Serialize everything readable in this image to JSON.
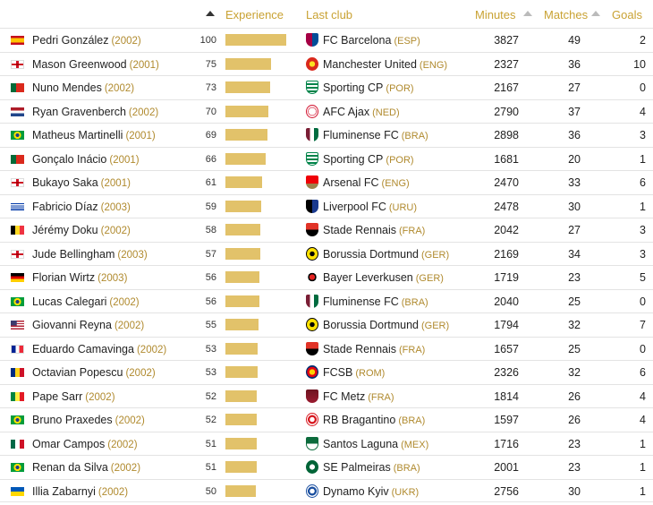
{
  "header": {
    "experience": "Experience",
    "last_club": "Last club",
    "minutes": "Minutes",
    "matches": "Matches",
    "goals": "Goals"
  },
  "accent_color": "#c9a233",
  "bar_color": "#e2c26a",
  "rows": [
    {
      "name": "Pedri González",
      "year": "(2002)",
      "flag": "spain-flag-icon",
      "experience": "100",
      "club": "FC Barcelona",
      "country": "(ESP)",
      "crest": "barcelona-crest-icon",
      "minutes": "3827",
      "matches": "49",
      "goals": "2"
    },
    {
      "name": "Mason Greenwood",
      "year": "(2001)",
      "flag": "england-flag-icon",
      "experience": "75",
      "club": "Manchester United",
      "country": "(ENG)",
      "crest": "manchester-united-crest-icon",
      "minutes": "2327",
      "matches": "36",
      "goals": "10"
    },
    {
      "name": "Nuno Mendes",
      "year": "(2002)",
      "flag": "portugal-flag-icon",
      "experience": "73",
      "club": "Sporting CP",
      "country": "(POR)",
      "crest": "sporting-cp-crest-icon",
      "minutes": "2167",
      "matches": "27",
      "goals": "0"
    },
    {
      "name": "Ryan Gravenberch",
      "year": "(2002)",
      "flag": "netherlands-flag-icon",
      "experience": "70",
      "club": "AFC Ajax",
      "country": "(NED)",
      "crest": "ajax-crest-icon",
      "minutes": "2790",
      "matches": "37",
      "goals": "4"
    },
    {
      "name": "Matheus Martinelli",
      "year": "(2001)",
      "flag": "brazil-flag-icon",
      "experience": "69",
      "club": "Fluminense FC",
      "country": "(BRA)",
      "crest": "fluminense-crest-icon",
      "minutes": "2898",
      "matches": "36",
      "goals": "3"
    },
    {
      "name": "Gonçalo Inácio",
      "year": "(2001)",
      "flag": "portugal-flag-icon",
      "experience": "66",
      "club": "Sporting CP",
      "country": "(POR)",
      "crest": "sporting-cp-crest-icon",
      "minutes": "1681",
      "matches": "20",
      "goals": "1"
    },
    {
      "name": "Bukayo Saka",
      "year": "(2001)",
      "flag": "england-flag-icon",
      "experience": "61",
      "club": "Arsenal FC",
      "country": "(ENG)",
      "crest": "arsenal-crest-icon",
      "minutes": "2470",
      "matches": "33",
      "goals": "6"
    },
    {
      "name": "Fabricio Díaz",
      "year": "(2003)",
      "flag": "uruguay-flag-icon",
      "experience": "59",
      "club": "Liverpool FC",
      "country": "(URU)",
      "crest": "liverpool-uru-crest-icon",
      "minutes": "2478",
      "matches": "30",
      "goals": "1"
    },
    {
      "name": "Jérémy Doku",
      "year": "(2002)",
      "flag": "belgium-flag-icon",
      "experience": "58",
      "club": "Stade Rennais",
      "country": "(FRA)",
      "crest": "rennes-crest-icon",
      "minutes": "2042",
      "matches": "27",
      "goals": "3"
    },
    {
      "name": "Jude Bellingham",
      "year": "(2003)",
      "flag": "england-flag-icon",
      "experience": "57",
      "club": "Borussia Dortmund",
      "country": "(GER)",
      "crest": "dortmund-crest-icon",
      "minutes": "2169",
      "matches": "34",
      "goals": "3"
    },
    {
      "name": "Florian Wirtz",
      "year": "(2003)",
      "flag": "germany-flag-icon",
      "experience": "56",
      "club": "Bayer Leverkusen",
      "country": "(GER)",
      "crest": "leverkusen-crest-icon",
      "minutes": "1719",
      "matches": "23",
      "goals": "5"
    },
    {
      "name": "Lucas Calegari",
      "year": "(2002)",
      "flag": "brazil-flag-icon",
      "experience": "56",
      "club": "Fluminense FC",
      "country": "(BRA)",
      "crest": "fluminense-crest-icon",
      "minutes": "2040",
      "matches": "25",
      "goals": "0"
    },
    {
      "name": "Giovanni Reyna",
      "year": "(2002)",
      "flag": "usa-flag-icon",
      "experience": "55",
      "club": "Borussia Dortmund",
      "country": "(GER)",
      "crest": "dortmund-crest-icon",
      "minutes": "1794",
      "matches": "32",
      "goals": "7"
    },
    {
      "name": "Eduardo Camavinga",
      "year": "(2002)",
      "flag": "france-flag-icon",
      "experience": "53",
      "club": "Stade Rennais",
      "country": "(FRA)",
      "crest": "rennes-crest-icon",
      "minutes": "1657",
      "matches": "25",
      "goals": "0"
    },
    {
      "name": "Octavian Popescu",
      "year": "(2002)",
      "flag": "romania-flag-icon",
      "experience": "53",
      "club": "FCSB",
      "country": "(ROM)",
      "crest": "fcsb-crest-icon",
      "minutes": "2326",
      "matches": "32",
      "goals": "6"
    },
    {
      "name": "Pape Sarr",
      "year": "(2002)",
      "flag": "senegal-flag-icon",
      "experience": "52",
      "club": "FC Metz",
      "country": "(FRA)",
      "crest": "metz-crest-icon",
      "minutes": "1814",
      "matches": "26",
      "goals": "4"
    },
    {
      "name": "Bruno Praxedes",
      "year": "(2002)",
      "flag": "brazil-flag-icon",
      "experience": "52",
      "club": "RB Bragantino",
      "country": "(BRA)",
      "crest": "bragantino-crest-icon",
      "minutes": "1597",
      "matches": "26",
      "goals": "4"
    },
    {
      "name": "Omar Campos",
      "year": "(2002)",
      "flag": "mexico-flag-icon",
      "experience": "51",
      "club": "Santos Laguna",
      "country": "(MEX)",
      "crest": "santos-laguna-crest-icon",
      "minutes": "1716",
      "matches": "23",
      "goals": "1"
    },
    {
      "name": "Renan da Silva",
      "year": "(2002)",
      "flag": "brazil-flag-icon",
      "experience": "51",
      "club": "SE Palmeiras",
      "country": "(BRA)",
      "crest": "palmeiras-crest-icon",
      "minutes": "2001",
      "matches": "23",
      "goals": "1"
    },
    {
      "name": "Illia Zabarnyi",
      "year": "(2002)",
      "flag": "ukraine-flag-icon",
      "experience": "50",
      "club": "Dynamo Kyiv",
      "country": "(UKR)",
      "crest": "dynamo-kyiv-crest-icon",
      "minutes": "2756",
      "matches": "30",
      "goals": "1"
    }
  ]
}
